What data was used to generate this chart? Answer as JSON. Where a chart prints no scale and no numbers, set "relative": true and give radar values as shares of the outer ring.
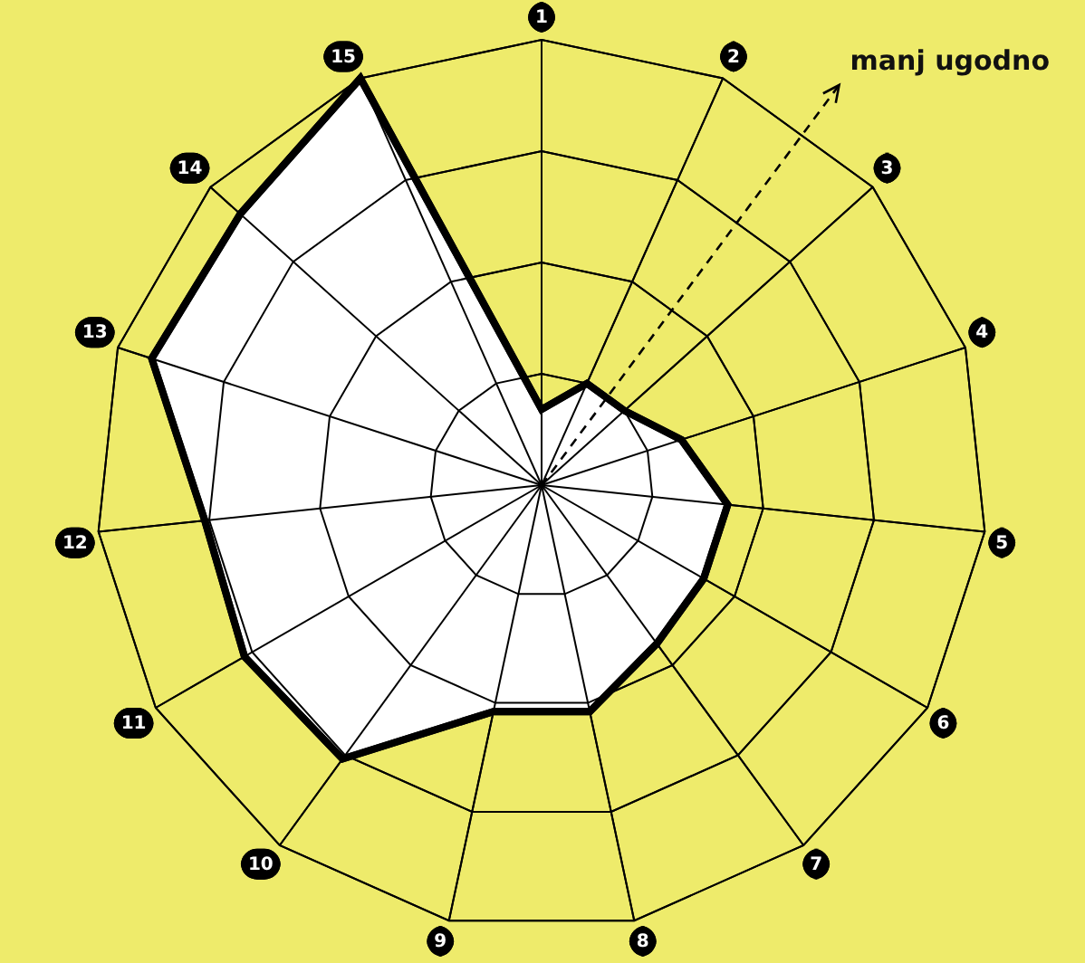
{
  "chart_data": {
    "type": "radar",
    "categories": [
      "1",
      "2",
      "3",
      "4",
      "5",
      "6",
      "7",
      "8",
      "9",
      "10",
      "11",
      "12",
      "13",
      "14",
      "15"
    ],
    "series": [
      {
        "color": "#000000",
        "values": [
          0.17,
          0.25,
          0.25,
          0.33,
          0.42,
          0.42,
          0.44,
          0.52,
          0.52,
          0.76,
          0.77,
          0.76,
          0.92,
          0.91,
          1.0
        ]
      }
    ],
    "relative": true,
    "grid": true,
    "legend": false,
    "marker": "none",
    "annotations": [
      "manj ugodno"
    ]
  }
}
